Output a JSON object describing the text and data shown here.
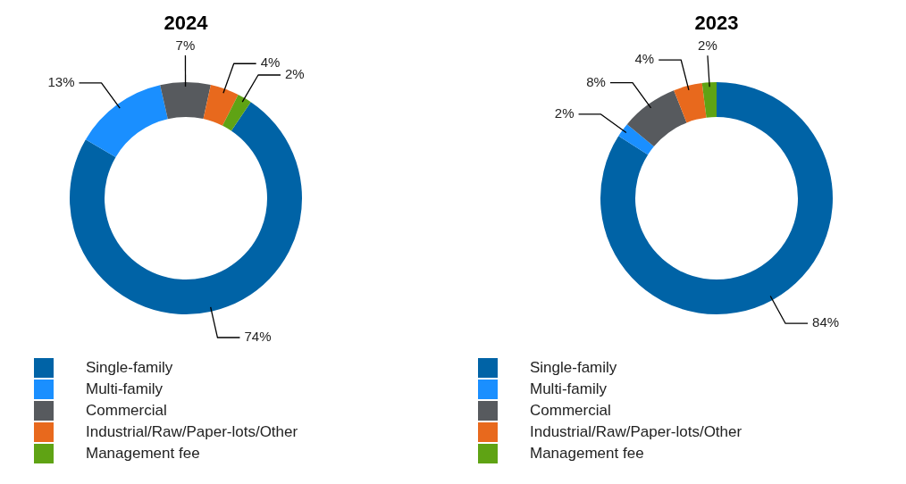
{
  "chart_data": [
    {
      "type": "donut",
      "title": "2024",
      "categories": [
        "Single-family",
        "Multi-family",
        "Commercial",
        "Industrial/Raw/Paper-lots/Other",
        "Management fee"
      ],
      "values": [
        74,
        13,
        7,
        4,
        2
      ],
      "value_labels": [
        "74%",
        "13%",
        "7%",
        "4%",
        "2%"
      ],
      "colors": [
        "#0063a6",
        "#1a8fff",
        "#575a5e",
        "#e8691d",
        "#5fa314"
      ],
      "legend": "bottom"
    },
    {
      "type": "donut",
      "title": "2023",
      "categories": [
        "Single-family",
        "Multi-family",
        "Commercial",
        "Industrial/Raw/Paper-lots/Other",
        "Management fee"
      ],
      "values": [
        84,
        2,
        8,
        4,
        2
      ],
      "value_labels": [
        "84%",
        "2%",
        "8%",
        "4%",
        "2%"
      ],
      "colors": [
        "#0063a6",
        "#1a8fff",
        "#575a5e",
        "#e8691d",
        "#5fa314"
      ],
      "legend": "bottom"
    }
  ]
}
